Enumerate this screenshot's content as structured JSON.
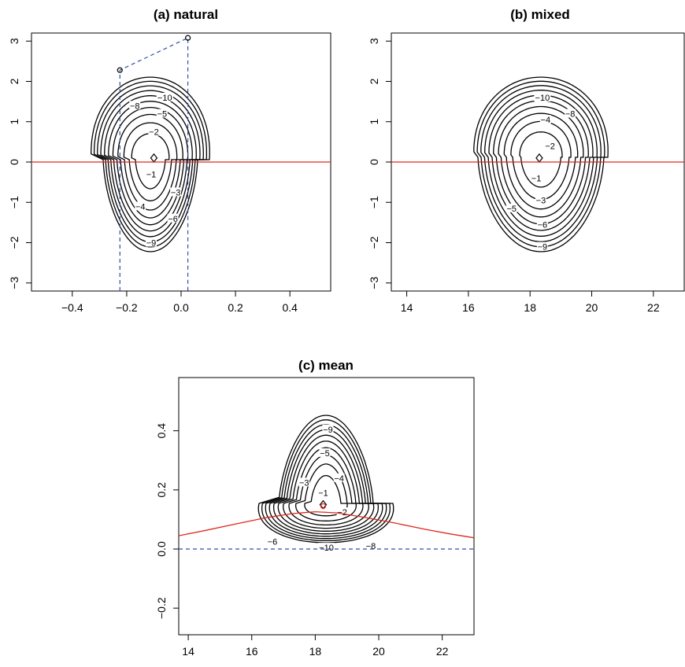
{
  "chart_data": [
    {
      "panel": "a",
      "type": "contour",
      "title": "(a) natural",
      "xlim": [
        -0.55,
        0.55
      ],
      "ylim": [
        -3.2,
        3.2
      ],
      "xticks": [
        "-0.4",
        "-0.2",
        "0.0",
        "0.2",
        "0.4"
      ],
      "yticks": [
        "-3",
        "-2",
        "-1",
        "0",
        "1",
        "2",
        "3"
      ],
      "center": [
        -0.1,
        0.1
      ],
      "contour_levels": [
        -1,
        -2,
        -3,
        -4,
        -5,
        -6,
        -7,
        -8,
        -9,
        -10
      ],
      "contour_labels": [
        {
          "text": "-10",
          "x": -0.06,
          "y": 1.6
        },
        {
          "text": "-8",
          "x": -0.17,
          "y": 1.4
        },
        {
          "text": "-5",
          "x": -0.07,
          "y": 1.2
        },
        {
          "text": "-2",
          "x": -0.1,
          "y": 0.75
        },
        {
          "text": "-1",
          "x": -0.11,
          "y": -0.3
        },
        {
          "text": "-3",
          "x": -0.02,
          "y": -0.75
        },
        {
          "text": "-4",
          "x": -0.15,
          "y": -1.1
        },
        {
          "text": "-6",
          "x": -0.03,
          "y": -1.4
        },
        {
          "text": "-9",
          "x": -0.11,
          "y": -2.0
        }
      ],
      "reference_line": {
        "y": 0
      },
      "dashed_path": [
        [
          -0.225,
          -3.2
        ],
        [
          -0.225,
          2.28
        ],
        [
          0.025,
          3.08
        ],
        [
          0.025,
          -3.2
        ]
      ],
      "points": [
        [
          -0.225,
          2.28
        ],
        [
          0.025,
          3.08
        ]
      ]
    },
    {
      "panel": "b",
      "type": "contour",
      "title": "(b) mixed",
      "xlim": [
        13.5,
        23
      ],
      "ylim": [
        -3.2,
        3.2
      ],
      "xticks": [
        "14",
        "16",
        "18",
        "20",
        "22"
      ],
      "yticks": [
        "-3",
        "-2",
        "-1",
        "0",
        "1",
        "2",
        "3"
      ],
      "center": [
        18.3,
        0.1
      ],
      "contour_levels": [
        -1,
        -2,
        -3,
        -4,
        -5,
        -6,
        -7,
        -8,
        -9,
        -10
      ],
      "contour_labels": [
        {
          "text": "-10",
          "x": 18.4,
          "y": 1.6
        },
        {
          "text": "-4",
          "x": 18.5,
          "y": 1.05
        },
        {
          "text": "-8",
          "x": 19.3,
          "y": 1.2
        },
        {
          "text": "-2",
          "x": 18.65,
          "y": 0.4
        },
        {
          "text": "-1",
          "x": 18.2,
          "y": -0.4
        },
        {
          "text": "-3",
          "x": 18.35,
          "y": -0.95
        },
        {
          "text": "-5",
          "x": 17.4,
          "y": -1.15
        },
        {
          "text": "-6",
          "x": 18.4,
          "y": -1.55
        },
        {
          "text": "-9",
          "x": 18.4,
          "y": -2.1
        }
      ],
      "reference_line": {
        "y": 0
      }
    },
    {
      "panel": "c",
      "type": "contour",
      "title": "(c) mean",
      "xlim": [
        13.7,
        23
      ],
      "ylim": [
        -0.29,
        0.58
      ],
      "xticks": [
        "14",
        "16",
        "18",
        "20",
        "22"
      ],
      "yticks": [
        "-0.2",
        "0.0",
        "0.2",
        "0.4"
      ],
      "center": [
        18.25,
        0.15
      ],
      "contour_levels": [
        -1,
        -2,
        -3,
        -4,
        -5,
        -6,
        -7,
        -8,
        -9,
        -10
      ],
      "contour_labels": [
        {
          "text": "-9",
          "x": 18.4,
          "y": 0.405
        },
        {
          "text": "-5",
          "x": 18.3,
          "y": 0.325
        },
        {
          "text": "-4",
          "x": 18.75,
          "y": 0.24
        },
        {
          "text": "-3",
          "x": 17.65,
          "y": 0.225
        },
        {
          "text": "-1",
          "x": 18.25,
          "y": 0.19
        },
        {
          "text": "-2",
          "x": 18.85,
          "y": 0.125
        },
        {
          "text": "-6",
          "x": 16.65,
          "y": 0.025
        },
        {
          "text": "-10",
          "x": 18.35,
          "y": 0.005
        },
        {
          "text": "-8",
          "x": 19.75,
          "y": 0.01
        }
      ],
      "reference_line": {
        "y": 0
      },
      "curve": [
        [
          13.7,
          0.045
        ],
        [
          14.5,
          0.062
        ],
        [
          15.5,
          0.085
        ],
        [
          16.5,
          0.107
        ],
        [
          17.3,
          0.12
        ],
        [
          18.0,
          0.126
        ],
        [
          18.7,
          0.122
        ],
        [
          19.5,
          0.108
        ],
        [
          20.5,
          0.088
        ],
        [
          21.5,
          0.066
        ],
        [
          22.3,
          0.05
        ],
        [
          23.0,
          0.038
        ]
      ],
      "points": [
        [
          18.25,
          0.145
        ]
      ]
    }
  ]
}
